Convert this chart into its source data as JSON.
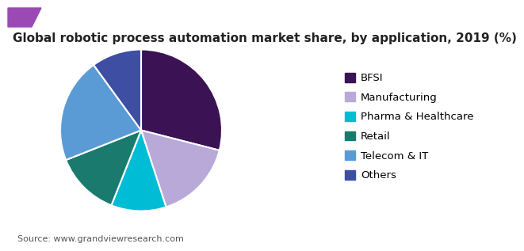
{
  "title": "Global robotic process automation market share, by application, 2019 (%)",
  "labels": [
    "BFSI",
    "Manufacturing",
    "Pharma & Healthcare",
    "Retail",
    "Telecom & IT",
    "Others"
  ],
  "values": [
    29,
    16,
    11,
    13,
    21,
    10
  ],
  "colors": [
    "#3b1354",
    "#b8a9d9",
    "#00bcd4",
    "#1a7a6e",
    "#5b9bd5",
    "#3d4ea3"
  ],
  "source": "Source: www.grandviewresearch.com",
  "title_fontsize": 11,
  "legend_fontsize": 9.5,
  "source_fontsize": 8,
  "background_color": "#ffffff",
  "startangle": 90,
  "header_left_color": "#6a1a8a",
  "header_right_color": "#b060c0"
}
